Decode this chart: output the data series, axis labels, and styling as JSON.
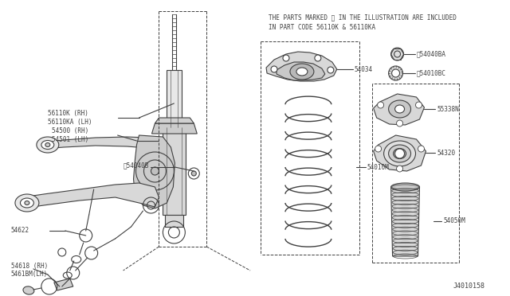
{
  "bg_color": "#ffffff",
  "line_color": "#404040",
  "text_color": "#404040",
  "fig_id": "J4010158",
  "notice_line1": "THE PARTS MARKED ※ IN THE ILLUSTRATION ARE INCLUDED",
  "notice_line2": "IN PART CODE 56110K & 56110KA"
}
